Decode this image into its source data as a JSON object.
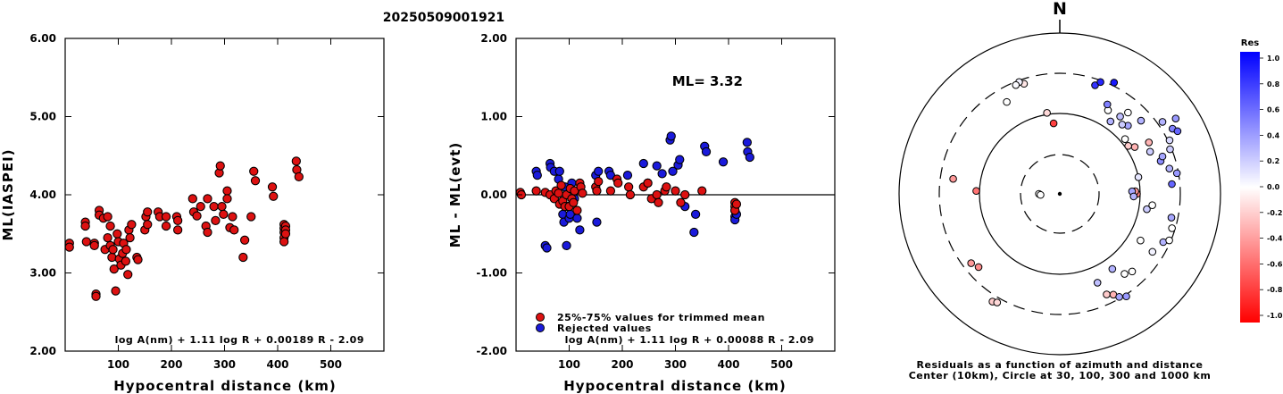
{
  "title": "20250509001921",
  "colors": {
    "red": "#dd1111",
    "blue": "#1a1adb",
    "axis": "#000000"
  },
  "chart_data": [
    {
      "type": "scatter",
      "xlabel": "Hypocentral distance (km)",
      "ylabel": "ML(IASPEI)",
      "xlim": [
        0,
        600
      ],
      "ylim": [
        2,
        6
      ],
      "xticks": [
        "100",
        "200",
        "300",
        "400",
        "500"
      ],
      "yticks": [
        "2.00",
        "3.00",
        "4.00",
        "5.00",
        "6.00"
      ],
      "formula": "log A(nm) + 1.11 log R + 0.00189 R - 2.09",
      "points": [
        [
          8,
          3.38
        ],
        [
          8,
          3.33
        ],
        [
          38,
          3.65
        ],
        [
          38,
          3.6
        ],
        [
          40,
          3.4
        ],
        [
          55,
          3.38
        ],
        [
          55,
          3.35
        ],
        [
          58,
          2.73
        ],
        [
          58,
          2.7
        ],
        [
          64,
          3.8
        ],
        [
          64,
          3.74
        ],
        [
          72,
          3.7
        ],
        [
          75,
          3.3
        ],
        [
          80,
          3.45
        ],
        [
          80,
          3.72
        ],
        [
          85,
          3.6
        ],
        [
          85,
          3.35
        ],
        [
          88,
          3.2
        ],
        [
          90,
          3.3
        ],
        [
          92,
          3.05
        ],
        [
          95,
          2.77
        ],
        [
          98,
          3.5
        ],
        [
          100,
          3.4
        ],
        [
          102,
          3.18
        ],
        [
          105,
          3.1
        ],
        [
          108,
          3.25
        ],
        [
          110,
          3.38
        ],
        [
          114,
          3.15
        ],
        [
          115,
          3.3
        ],
        [
          118,
          2.98
        ],
        [
          120,
          3.55
        ],
        [
          122,
          3.45
        ],
        [
          125,
          3.62
        ],
        [
          135,
          3.2
        ],
        [
          137,
          3.17
        ],
        [
          150,
          3.55
        ],
        [
          152,
          3.72
        ],
        [
          155,
          3.78
        ],
        [
          155,
          3.62
        ],
        [
          175,
          3.78
        ],
        [
          178,
          3.72
        ],
        [
          190,
          3.72
        ],
        [
          190,
          3.6
        ],
        [
          210,
          3.72
        ],
        [
          212,
          3.67
        ],
        [
          212,
          3.55
        ],
        [
          240,
          3.95
        ],
        [
          242,
          3.78
        ],
        [
          248,
          3.73
        ],
        [
          255,
          3.85
        ],
        [
          265,
          3.6
        ],
        [
          268,
          3.52
        ],
        [
          268,
          3.95
        ],
        [
          280,
          3.85
        ],
        [
          283,
          3.67
        ],
        [
          290,
          4.28
        ],
        [
          292,
          4.37
        ],
        [
          295,
          3.85
        ],
        [
          298,
          3.75
        ],
        [
          305,
          4.05
        ],
        [
          305,
          3.95
        ],
        [
          310,
          3.58
        ],
        [
          315,
          3.72
        ],
        [
          318,
          3.55
        ],
        [
          335,
          3.2
        ],
        [
          338,
          3.42
        ],
        [
          350,
          3.72
        ],
        [
          355,
          4.3
        ],
        [
          358,
          4.18
        ],
        [
          390,
          4.1
        ],
        [
          392,
          3.98
        ],
        [
          412,
          3.62
        ],
        [
          412,
          3.57
        ],
        [
          412,
          3.52
        ],
        [
          412,
          3.45
        ],
        [
          412,
          3.4
        ],
        [
          415,
          3.6
        ],
        [
          415,
          3.55
        ],
        [
          415,
          3.5
        ],
        [
          435,
          4.43
        ],
        [
          436,
          4.32
        ],
        [
          440,
          4.23
        ]
      ]
    },
    {
      "type": "scatter",
      "xlabel": "Hypocentral distance (km)",
      "ylabel": "ML - ML(evt)",
      "xlim": [
        0,
        600
      ],
      "ylim": [
        -2,
        2
      ],
      "xticks": [
        "100",
        "200",
        "300",
        "400",
        "500"
      ],
      "yticks": [
        "-2.00",
        "-1.00",
        "0.00",
        "1.00",
        "2.00"
      ],
      "annotation": "ML= 3.32",
      "formula": "log A(nm) + 1.11 log R + 0.00088 R - 2.09",
      "legend": [
        "25%-75% values for trimmed mean",
        "Rejected values"
      ],
      "red_points": [
        [
          8,
          0.03
        ],
        [
          10,
          0.0
        ],
        [
          38,
          0.05
        ],
        [
          55,
          0.03
        ],
        [
          64,
          0.0
        ],
        [
          72,
          -0.05
        ],
        [
          75,
          0.05
        ],
        [
          80,
          0.02
        ],
        [
          82,
          -0.12
        ],
        [
          85,
          0.12
        ],
        [
          88,
          -0.08
        ],
        [
          92,
          -0.15
        ],
        [
          95,
          0.0
        ],
        [
          100,
          -0.15
        ],
        [
          102,
          0.08
        ],
        [
          105,
          -0.05
        ],
        [
          108,
          -0.1
        ],
        [
          110,
          0.05
        ],
        [
          115,
          -0.2
        ],
        [
          120,
          0.15
        ],
        [
          122,
          0.1
        ],
        [
          125,
          0.02
        ],
        [
          150,
          0.1
        ],
        [
          152,
          0.05
        ],
        [
          155,
          0.17
        ],
        [
          178,
          0.05
        ],
        [
          190,
          0.2
        ],
        [
          192,
          0.15
        ],
        [
          212,
          0.1
        ],
        [
          215,
          0.0
        ],
        [
          240,
          0.1
        ],
        [
          248,
          0.15
        ],
        [
          255,
          -0.05
        ],
        [
          265,
          0.0
        ],
        [
          268,
          -0.1
        ],
        [
          280,
          0.05
        ],
        [
          283,
          0.1
        ],
        [
          300,
          0.05
        ],
        [
          310,
          -0.1
        ],
        [
          318,
          0.0
        ],
        [
          350,
          0.05
        ],
        [
          412,
          -0.1
        ],
        [
          412,
          -0.15
        ],
        [
          412,
          -0.2
        ],
        [
          415,
          -0.12
        ]
      ],
      "blue_points": [
        [
          38,
          0.3
        ],
        [
          40,
          0.25
        ],
        [
          55,
          -0.65
        ],
        [
          58,
          -0.68
        ],
        [
          64,
          0.4
        ],
        [
          65,
          0.35
        ],
        [
          72,
          0.3
        ],
        [
          80,
          0.2
        ],
        [
          82,
          0.3
        ],
        [
          88,
          -0.25
        ],
        [
          90,
          -0.35
        ],
        [
          92,
          0.1
        ],
        [
          95,
          -0.65
        ],
        [
          98,
          -0.15
        ],
        [
          100,
          -0.3
        ],
        [
          102,
          -0.25
        ],
        [
          105,
          0.15
        ],
        [
          110,
          -0.05
        ],
        [
          115,
          -0.3
        ],
        [
          120,
          -0.45
        ],
        [
          150,
          0.25
        ],
        [
          152,
          -0.35
        ],
        [
          155,
          0.3
        ],
        [
          175,
          0.3
        ],
        [
          178,
          0.25
        ],
        [
          210,
          0.25
        ],
        [
          240,
          0.4
        ],
        [
          248,
          0.15
        ],
        [
          265,
          0.37
        ],
        [
          275,
          0.27
        ],
        [
          290,
          0.7
        ],
        [
          292,
          0.75
        ],
        [
          295,
          0.3
        ],
        [
          305,
          0.38
        ],
        [
          308,
          0.45
        ],
        [
          318,
          -0.15
        ],
        [
          335,
          -0.48
        ],
        [
          338,
          -0.25
        ],
        [
          355,
          0.62
        ],
        [
          358,
          0.55
        ],
        [
          390,
          0.42
        ],
        [
          412,
          -0.2
        ],
        [
          412,
          -0.28
        ],
        [
          412,
          -0.32
        ],
        [
          415,
          -0.25
        ],
        [
          435,
          0.67
        ],
        [
          436,
          0.55
        ],
        [
          440,
          0.48
        ]
      ]
    },
    {
      "type": "polar-scatter",
      "north_label": "N",
      "caption_line1": "Residuals as a function of azimuth and distance",
      "caption_line2": "Center (10km), Circle at 30, 100, 300 and 1000 km",
      "colorbar_title": "Res",
      "colorbar_labels": [
        "1.0",
        "0.8",
        "0.6",
        "0.4",
        "0.2",
        "0.0",
        "-0.2",
        "-0.4",
        "-0.6",
        "-0.8",
        "-1.0"
      ],
      "points_note": "each point: [azimuth degrees, radius fraction of outer circle, residual]",
      "points": [
        [
          -18,
          0.72,
          -0.1
        ],
        [
          -20,
          0.74,
          0.05
        ],
        [
          -22,
          0.73,
          0.02
        ],
        [
          -30,
          0.66,
          0.0
        ],
        [
          -9,
          0.51,
          -0.15
        ],
        [
          -5,
          0.44,
          -0.75
        ],
        [
          -82,
          0.67,
          -0.4
        ],
        [
          -88,
          0.52,
          -0.55
        ],
        [
          -90,
          0.13,
          0.0
        ],
        [
          -93,
          0.12,
          0.0
        ],
        [
          -128,
          0.7,
          -0.4
        ],
        [
          -132,
          0.68,
          -0.45
        ],
        [
          -148,
          0.79,
          -0.2
        ],
        [
          -150,
          0.78,
          -0.15
        ],
        [
          155,
          0.69,
          -0.2
        ],
        [
          152,
          0.71,
          -0.3
        ],
        [
          150,
          0.74,
          0.35
        ],
        [
          147,
          0.76,
          0.4
        ],
        [
          157,
          0.6,
          0.25
        ],
        [
          145,
          0.57,
          0.3
        ],
        [
          141,
          0.64,
          0.0
        ],
        [
          137,
          0.66,
          0.0
        ],
        [
          122,
          0.68,
          0.05
        ],
        [
          115,
          0.71,
          0.3
        ],
        [
          113,
          0.74,
          0.0
        ],
        [
          107,
          0.73,
          0.0
        ],
        [
          102,
          0.71,
          0.35
        ],
        [
          120,
          0.58,
          0.0
        ],
        [
          100,
          0.55,
          0.2
        ],
        [
          97,
          0.58,
          0.0
        ],
        [
          90,
          0.48,
          -0.5
        ],
        [
          88,
          0.47,
          -0.4
        ],
        [
          85,
          0.7,
          0.6
        ],
        [
          80,
          0.74,
          0.4
        ],
        [
          77,
          0.7,
          0.3
        ],
        [
          72,
          0.66,
          0.45
        ],
        [
          70,
          0.68,
          0.35
        ],
        [
          65,
          0.62,
          0.2
        ],
        [
          60,
          0.64,
          -0.3
        ],
        [
          58,
          0.55,
          -0.3
        ],
        [
          55,
          0.52,
          -0.2
        ],
        [
          50,
          0.53,
          0.0
        ],
        [
          68,
          0.74,
          0.2
        ],
        [
          64,
          0.76,
          0.15
        ],
        [
          60,
          0.81,
          0.5
        ],
        [
          62,
          0.83,
          0.6
        ],
        [
          57,
          0.86,
          0.4
        ],
        [
          55,
          0.78,
          0.3
        ],
        [
          48,
          0.68,
          0.3
        ],
        [
          45,
          0.6,
          0.35
        ],
        [
          42,
          0.58,
          0.2
        ],
        [
          40,
          0.66,
          0.0
        ],
        [
          38,
          0.61,
          0.25
        ],
        [
          35,
          0.55,
          0.3
        ],
        [
          30,
          0.6,
          0.0
        ],
        [
          28,
          0.63,
          0.5
        ],
        [
          18,
          0.71,
          0.8
        ],
        [
          20,
          0.74,
          0.85
        ],
        [
          26,
          0.77,
          0.9
        ],
        [
          88,
          0.45,
          0.35
        ],
        [
          92,
          0.46,
          0.3
        ],
        [
          78,
          0.5,
          0.1
        ]
      ]
    }
  ]
}
